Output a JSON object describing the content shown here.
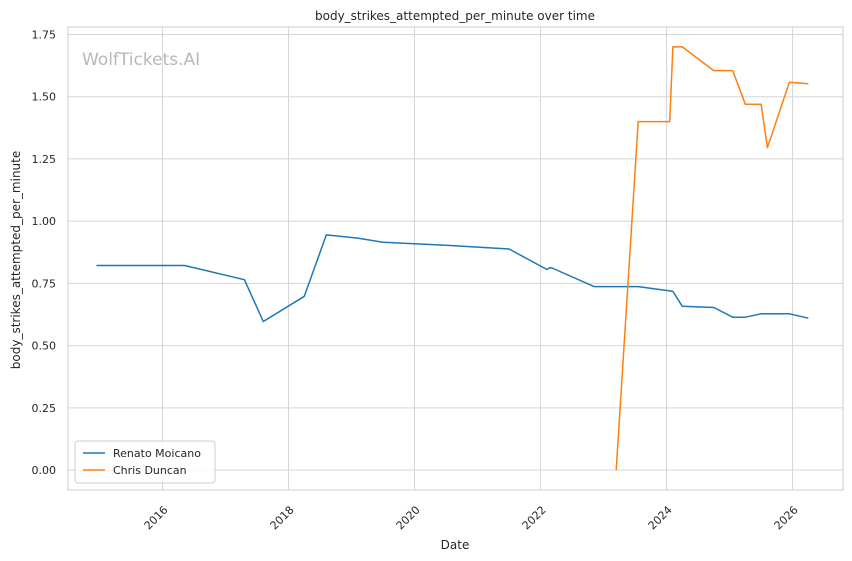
{
  "chart_data": {
    "type": "line",
    "title": "body_strikes_attempted_per_minute over time",
    "xlabel": "Date",
    "ylabel": "body_strikes_attempted_per_minute",
    "watermark": "WolfTickets.AI",
    "xlim": [
      2014.5,
      2026.8
    ],
    "ylim": [
      -0.08,
      1.78
    ],
    "xticks": [
      2016,
      2018,
      2020,
      2022,
      2024,
      2026
    ],
    "xtick_labels": [
      "2016",
      "2018",
      "2020",
      "2022",
      "2024",
      "2026"
    ],
    "yticks": [
      0.0,
      0.25,
      0.5,
      0.75,
      1.0,
      1.25,
      1.5,
      1.75
    ],
    "ytick_labels": [
      "0.00",
      "0.25",
      "0.50",
      "0.75",
      "1.00",
      "1.25",
      "1.50",
      "1.75"
    ],
    "grid": true,
    "legend_position": "lower-left",
    "series": [
      {
        "name": "Renato Moicano",
        "color": "#1f77b4",
        "x": [
          2014.95,
          2016.35,
          2017.3,
          2017.6,
          2018.25,
          2018.6,
          2019.1,
          2019.5,
          2020.5,
          2021.5,
          2022.1,
          2022.15,
          2022.2,
          2022.85,
          2023.55,
          2024.05,
          2024.1,
          2024.25,
          2024.75,
          2025.05,
          2025.25,
          2025.5,
          2025.95,
          2026.25
        ],
        "y": [
          0.822,
          0.822,
          0.765,
          0.597,
          0.698,
          0.945,
          0.932,
          0.915,
          0.903,
          0.888,
          0.806,
          0.814,
          0.81,
          0.737,
          0.737,
          0.72,
          0.718,
          0.658,
          0.653,
          0.614,
          0.614,
          0.628,
          0.628,
          0.61
        ]
      },
      {
        "name": "Chris Duncan",
        "color": "#ff7f0e",
        "x": [
          2023.2,
          2023.55,
          2024.05,
          2024.1,
          2024.25,
          2024.75,
          2025.05,
          2025.25,
          2025.5,
          2025.6,
          2025.95,
          2026.25
        ],
        "y": [
          0.0,
          1.4,
          1.4,
          1.7,
          1.7,
          1.605,
          1.605,
          1.47,
          1.47,
          1.295,
          1.558,
          1.552
        ]
      }
    ]
  }
}
